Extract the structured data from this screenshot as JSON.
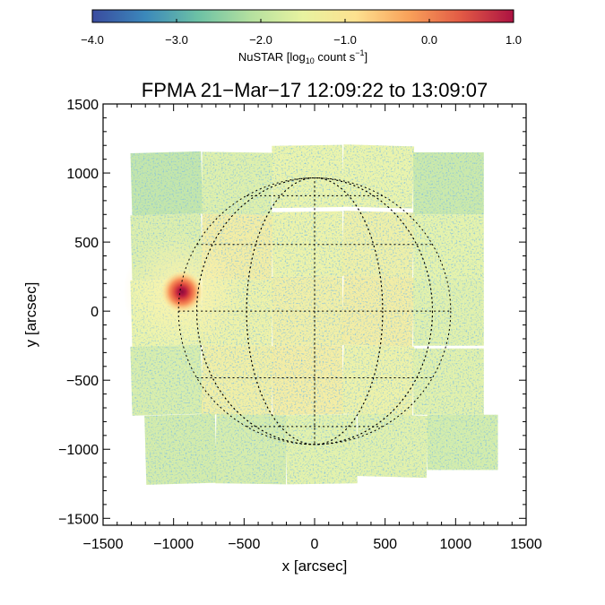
{
  "chart_data": {
    "type": "heatmap",
    "title": "FPMA 21−Mar−17 12:09:22 to 13:09:07",
    "xlabel": "x [arcsec]",
    "ylabel": "y [arcsec]",
    "xlim": [
      -1500,
      1500
    ],
    "ylim": [
      -1550,
      1500
    ],
    "xticks": [
      -1500,
      -1000,
      -500,
      0,
      500,
      1000,
      1500
    ],
    "xtick_labels": [
      "−1500",
      "−1000",
      "−500",
      "0",
      "500",
      "1000",
      "1500"
    ],
    "yticks": [
      -1500,
      -1000,
      -500,
      0,
      500,
      1000,
      1500
    ],
    "ytick_labels": [
      "−1500",
      "−1000",
      "−500",
      "0",
      "500",
      "1000",
      "1500"
    ],
    "colorbar": {
      "label_prefix": "NuSTAR [log",
      "label_sub": "10",
      "label_mid": " count s",
      "label_sup": "−1",
      "label_suffix": "]",
      "range": [
        -4.0,
        1.0
      ],
      "ticks": [
        -4.0,
        -3.0,
        -2.0,
        -1.0,
        0.0,
        1.0
      ],
      "tick_labels": [
        "−4.0",
        "−3.0",
        "−2.0",
        "−1.0",
        "0.0",
        "1.0"
      ],
      "colormap": [
        "#3a4b9f",
        "#3b88bb",
        "#6cc1a5",
        "#b4e09f",
        "#e8f3a0",
        "#fde190",
        "#f9a25a",
        "#e25a45",
        "#ac1242"
      ]
    },
    "solar_disk_radius_arcsec": 965,
    "grid_spacing_deg": 30,
    "bright_source": {
      "x": -940,
      "y": 140,
      "log10_count_rate": 0.9
    },
    "background_level": -1.3,
    "mosaic_tiles": [
      {
        "x0": -1300,
        "y0": 700,
        "w": 500,
        "h": 450
      },
      {
        "x0": -800,
        "y0": 700,
        "w": 500,
        "h": 450
      },
      {
        "x0": -300,
        "y0": 750,
        "w": 500,
        "h": 450
      },
      {
        "x0": 200,
        "y0": 750,
        "w": 500,
        "h": 450
      },
      {
        "x0": 700,
        "y0": 700,
        "w": 500,
        "h": 450
      },
      {
        "x0": -1300,
        "y0": 230,
        "w": 500,
        "h": 470
      },
      {
        "x0": -800,
        "y0": 230,
        "w": 500,
        "h": 470
      },
      {
        "x0": -300,
        "y0": 250,
        "w": 500,
        "h": 470
      },
      {
        "x0": 200,
        "y0": 250,
        "w": 500,
        "h": 470
      },
      {
        "x0": 700,
        "y0": 230,
        "w": 500,
        "h": 470
      },
      {
        "x0": -1300,
        "y0": -250,
        "w": 500,
        "h": 480
      },
      {
        "x0": -800,
        "y0": -250,
        "w": 500,
        "h": 480
      },
      {
        "x0": -300,
        "y0": -250,
        "w": 500,
        "h": 500
      },
      {
        "x0": 200,
        "y0": -250,
        "w": 500,
        "h": 500
      },
      {
        "x0": 700,
        "y0": -250,
        "w": 500,
        "h": 480
      },
      {
        "x0": -1300,
        "y0": -750,
        "w": 500,
        "h": 500
      },
      {
        "x0": -800,
        "y0": -750,
        "w": 500,
        "h": 500
      },
      {
        "x0": -300,
        "y0": -750,
        "w": 500,
        "h": 500
      },
      {
        "x0": 200,
        "y0": -750,
        "w": 500,
        "h": 500
      },
      {
        "x0": 700,
        "y0": -750,
        "w": 500,
        "h": 480
      },
      {
        "x0": -1200,
        "y0": -1250,
        "w": 500,
        "h": 500
      },
      {
        "x0": -700,
        "y0": -1250,
        "w": 500,
        "h": 500
      },
      {
        "x0": -200,
        "y0": -1250,
        "w": 500,
        "h": 500
      },
      {
        "x0": 300,
        "y0": -1200,
        "w": 500,
        "h": 450
      },
      {
        "x0": 800,
        "y0": -1150,
        "w": 500,
        "h": 400
      }
    ]
  }
}
